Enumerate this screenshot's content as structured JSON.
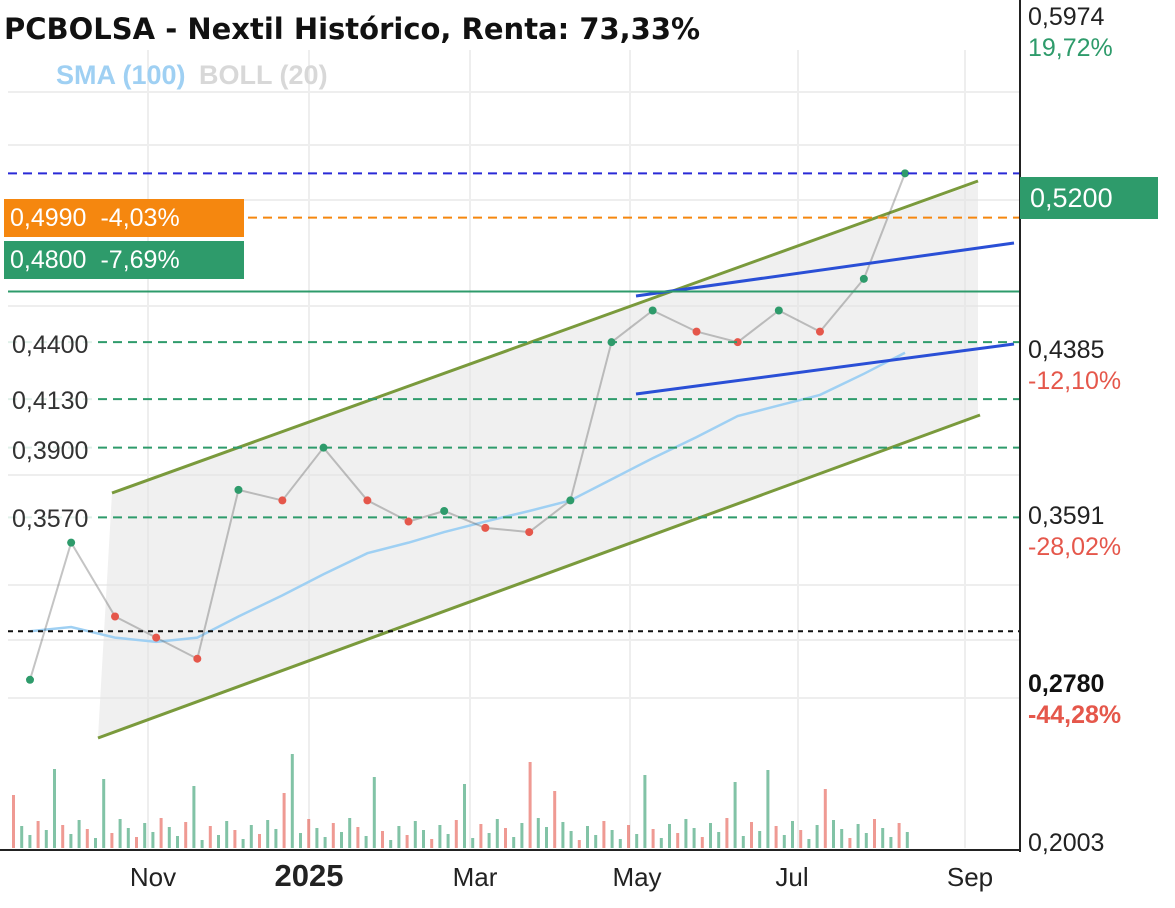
{
  "header": {
    "title": "PCBOLSA - Nextil Histórico, Renta: 73,33%",
    "legend_sma": "SMA (100)",
    "legend_boll": "BOLL (20)"
  },
  "tags": {
    "orange": {
      "price": "0,4990",
      "pct": "-4,03%",
      "color": "#f5870f"
    },
    "green": {
      "price": "0,4800",
      "pct": "-7,69%",
      "color": "#2e9b6b"
    },
    "current": "0,5200"
  },
  "levels": [
    "0,4400",
    "0,4130",
    "0,3900",
    "0,3570"
  ],
  "right_axis": {
    "top_price": "0,5974",
    "top_pct": "19,72%",
    "mid_price": "0,4385",
    "mid_pct": "-12,10%",
    "low_price": "0,3591",
    "low_pct": "-28,02%",
    "bold_price": "0,2780",
    "bold_pct": "-44,28%",
    "bottom_price": "0,2003"
  },
  "colors": {
    "up": "#2e9b6b",
    "down": "#e5574b",
    "sma": "#9fd0f3",
    "channel": "#7a9a3c",
    "trend": "#2a4fd6"
  },
  "chart_data": {
    "type": "line",
    "title": "PCBOLSA - Nextil Histórico, Renta: 73,33%",
    "x_ticks": [
      "Nov",
      "2025",
      "Mar",
      "May",
      "Jul",
      "Sep"
    ],
    "ylim": [
      0.2003,
      0.5974
    ],
    "x": [
      "2024-09-30",
      "2024-10-15",
      "2024-10-31",
      "2024-11-15",
      "2024-11-30",
      "2024-12-15",
      "2024-12-31",
      "2025-01-15",
      "2025-01-31",
      "2025-02-15",
      "2025-02-28",
      "2025-03-15",
      "2025-03-31",
      "2025-04-15",
      "2025-04-30",
      "2025-05-15",
      "2025-05-31",
      "2025-06-15",
      "2025-06-30",
      "2025-07-15",
      "2025-07-31",
      "2025-08-15"
    ],
    "series": [
      {
        "name": "",
        "values": [
          0.28,
          0.345,
          0.31,
          0.3,
          0.29,
          0.37,
          0.365,
          0.39,
          0.365,
          0.355,
          0.36,
          0.352,
          0.35,
          0.365,
          0.44,
          0.455,
          0.445,
          0.44,
          0.455,
          0.445,
          0.47,
          0.52
        ]
      },
      {
        "name": "SMA (100)",
        "values": [
          0.303,
          0.305,
          0.3,
          0.298,
          0.3,
          0.31,
          0.32,
          0.33,
          0.34,
          0.345,
          0.35,
          0.355,
          0.36,
          0.365,
          0.375,
          0.385,
          0.395,
          0.405,
          0.41,
          0.415,
          0.425,
          0.435
        ]
      }
    ],
    "horizontal_levels": [
      0.499,
      0.48,
      0.464,
      0.44,
      0.413,
      0.39,
      0.357,
      0.303,
      0.52
    ]
  }
}
